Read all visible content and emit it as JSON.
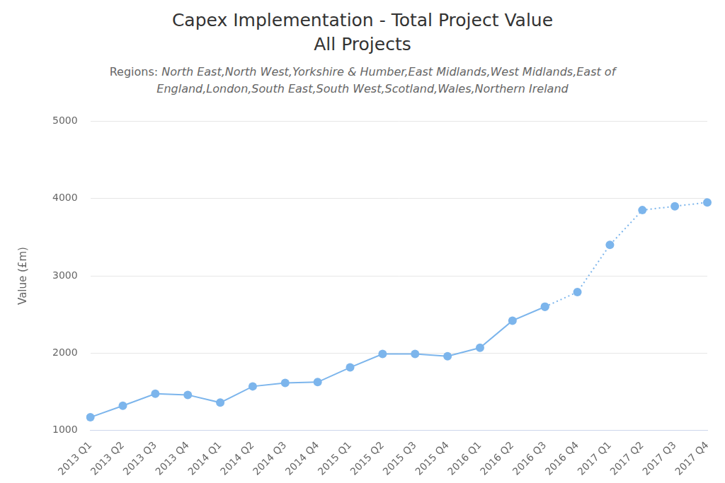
{
  "chart_data": {
    "type": "line",
    "title": [
      "Capex Implementation - Total Project Value",
      "All Projects"
    ],
    "subtitle": "Regions: North East,North West,Yorkshire & Humber,East Midlands,West Midlands,East of England,London,South East,South West,Scotland,Wales,Northern Ireland",
    "y_label": "Value (£m)",
    "categories": [
      "2013 Q1",
      "2013 Q2",
      "2013 Q3",
      "2013 Q4",
      "2014 Q1",
      "2014 Q2",
      "2014 Q3",
      "2014 Q4",
      "2015 Q1",
      "2015 Q2",
      "2015 Q3",
      "2015 Q4",
      "2016 Q1",
      "2016 Q2",
      "2016 Q3",
      "2016 Q4",
      "2017 Q1",
      "2017 Q2",
      "2017 Q3",
      "2017 Q4"
    ],
    "series": [
      {
        "color": "#7cb5ec",
        "line_style": "solid",
        "marker": "circle",
        "values": [
          1170,
          1320,
          1475,
          1460,
          1360,
          1570,
          1615,
          1625,
          1815,
          1990,
          1990,
          1960,
          2070,
          2420,
          2600,
          null,
          null,
          null,
          null,
          null
        ]
      },
      {
        "color": "#7cb5ec",
        "line_style": "dotted",
        "marker": "circle",
        "values": [
          null,
          null,
          null,
          null,
          null,
          null,
          null,
          null,
          null,
          null,
          null,
          null,
          null,
          null,
          2600,
          2790,
          3400,
          3850,
          3900,
          3950
        ]
      }
    ],
    "ylim": [
      1000,
      5000
    ],
    "yticks": [
      1000,
      2000,
      3000,
      4000,
      5000
    ],
    "grid": true
  }
}
